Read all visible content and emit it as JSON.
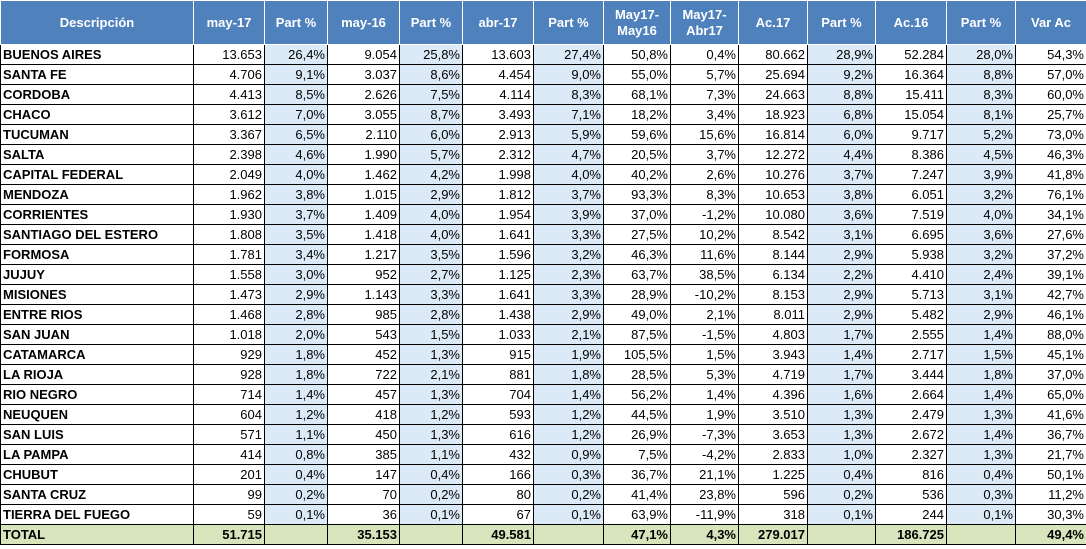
{
  "table": {
    "header": [
      "Descripción",
      "may-17",
      "Part %",
      "may-16",
      "Part %",
      "abr-17",
      "Part %",
      "May17-\nMay16",
      "May17-\nAbr17",
      "Ac.17",
      "Part %",
      "Ac.16",
      "Part %",
      "Var Ac"
    ],
    "rows": [
      [
        "BUENOS AIRES",
        "13.653",
        "26,4%",
        "9.054",
        "25,8%",
        "13.603",
        "27,4%",
        "50,8%",
        "0,4%",
        "80.662",
        "28,9%",
        "52.284",
        "28,0%",
        "54,3%"
      ],
      [
        "SANTA FE",
        "4.706",
        "9,1%",
        "3.037",
        "8,6%",
        "4.454",
        "9,0%",
        "55,0%",
        "5,7%",
        "25.694",
        "9,2%",
        "16.364",
        "8,8%",
        "57,0%"
      ],
      [
        "CORDOBA",
        "4.413",
        "8,5%",
        "2.626",
        "7,5%",
        "4.114",
        "8,3%",
        "68,1%",
        "7,3%",
        "24.663",
        "8,8%",
        "15.411",
        "8,3%",
        "60,0%"
      ],
      [
        "CHACO",
        "3.612",
        "7,0%",
        "3.055",
        "8,7%",
        "3.493",
        "7,1%",
        "18,2%",
        "3,4%",
        "18.923",
        "6,8%",
        "15.054",
        "8,1%",
        "25,7%"
      ],
      [
        "TUCUMAN",
        "3.367",
        "6,5%",
        "2.110",
        "6,0%",
        "2.913",
        "5,9%",
        "59,6%",
        "15,6%",
        "16.814",
        "6,0%",
        "9.717",
        "5,2%",
        "73,0%"
      ],
      [
        "SALTA",
        "2.398",
        "4,6%",
        "1.990",
        "5,7%",
        "2.312",
        "4,7%",
        "20,5%",
        "3,7%",
        "12.272",
        "4,4%",
        "8.386",
        "4,5%",
        "46,3%"
      ],
      [
        "CAPITAL FEDERAL",
        "2.049",
        "4,0%",
        "1.462",
        "4,2%",
        "1.998",
        "4,0%",
        "40,2%",
        "2,6%",
        "10.276",
        "3,7%",
        "7.247",
        "3,9%",
        "41,8%"
      ],
      [
        "MENDOZA",
        "1.962",
        "3,8%",
        "1.015",
        "2,9%",
        "1.812",
        "3,7%",
        "93,3%",
        "8,3%",
        "10.653",
        "3,8%",
        "6.051",
        "3,2%",
        "76,1%"
      ],
      [
        "CORRIENTES",
        "1.930",
        "3,7%",
        "1.409",
        "4,0%",
        "1.954",
        "3,9%",
        "37,0%",
        "-1,2%",
        "10.080",
        "3,6%",
        "7.519",
        "4,0%",
        "34,1%"
      ],
      [
        "SANTIAGO DEL ESTERO",
        "1.808",
        "3,5%",
        "1.418",
        "4,0%",
        "1.641",
        "3,3%",
        "27,5%",
        "10,2%",
        "8.542",
        "3,1%",
        "6.695",
        "3,6%",
        "27,6%"
      ],
      [
        "FORMOSA",
        "1.781",
        "3,4%",
        "1.217",
        "3,5%",
        "1.596",
        "3,2%",
        "46,3%",
        "11,6%",
        "8.144",
        "2,9%",
        "5.938",
        "3,2%",
        "37,2%"
      ],
      [
        "JUJUY",
        "1.558",
        "3,0%",
        "952",
        "2,7%",
        "1.125",
        "2,3%",
        "63,7%",
        "38,5%",
        "6.134",
        "2,2%",
        "4.410",
        "2,4%",
        "39,1%"
      ],
      [
        "MISIONES",
        "1.473",
        "2,9%",
        "1.143",
        "3,3%",
        "1.641",
        "3,3%",
        "28,9%",
        "-10,2%",
        "8.153",
        "2,9%",
        "5.713",
        "3,1%",
        "42,7%"
      ],
      [
        "ENTRE RIOS",
        "1.468",
        "2,8%",
        "985",
        "2,8%",
        "1.438",
        "2,9%",
        "49,0%",
        "2,1%",
        "8.011",
        "2,9%",
        "5.482",
        "2,9%",
        "46,1%"
      ],
      [
        "SAN JUAN",
        "1.018",
        "2,0%",
        "543",
        "1,5%",
        "1.033",
        "2,1%",
        "87,5%",
        "-1,5%",
        "4.803",
        "1,7%",
        "2.555",
        "1,4%",
        "88,0%"
      ],
      [
        "CATAMARCA",
        "929",
        "1,8%",
        "452",
        "1,3%",
        "915",
        "1,9%",
        "105,5%",
        "1,5%",
        "3.943",
        "1,4%",
        "2.717",
        "1,5%",
        "45,1%"
      ],
      [
        "LA RIOJA",
        "928",
        "1,8%",
        "722",
        "2,1%",
        "881",
        "1,8%",
        "28,5%",
        "5,3%",
        "4.719",
        "1,7%",
        "3.444",
        "1,8%",
        "37,0%"
      ],
      [
        "RIO NEGRO",
        "714",
        "1,4%",
        "457",
        "1,3%",
        "704",
        "1,4%",
        "56,2%",
        "1,4%",
        "4.396",
        "1,6%",
        "2.664",
        "1,4%",
        "65,0%"
      ],
      [
        "NEUQUEN",
        "604",
        "1,2%",
        "418",
        "1,2%",
        "593",
        "1,2%",
        "44,5%",
        "1,9%",
        "3.510",
        "1,3%",
        "2.479",
        "1,3%",
        "41,6%"
      ],
      [
        "SAN LUIS",
        "571",
        "1,1%",
        "450",
        "1,3%",
        "616",
        "1,2%",
        "26,9%",
        "-7,3%",
        "3.653",
        "1,3%",
        "2.672",
        "1,4%",
        "36,7%"
      ],
      [
        "LA PAMPA",
        "414",
        "0,8%",
        "385",
        "1,1%",
        "432",
        "0,9%",
        "7,5%",
        "-4,2%",
        "2.833",
        "1,0%",
        "2.327",
        "1,3%",
        "21,7%"
      ],
      [
        "CHUBUT",
        "201",
        "0,4%",
        "147",
        "0,4%",
        "166",
        "0,3%",
        "36,7%",
        "21,1%",
        "1.225",
        "0,4%",
        "816",
        "0,4%",
        "50,1%"
      ],
      [
        "SANTA CRUZ",
        "99",
        "0,2%",
        "70",
        "0,2%",
        "80",
        "0,2%",
        "41,4%",
        "23,8%",
        "596",
        "0,2%",
        "536",
        "0,3%",
        "11,2%"
      ],
      [
        "TIERRA DEL FUEGO",
        "59",
        "0,1%",
        "36",
        "0,1%",
        "67",
        "0,1%",
        "63,9%",
        "-11,9%",
        "318",
        "0,1%",
        "244",
        "0,1%",
        "30,3%"
      ]
    ],
    "total": [
      "TOTAL",
      "51.715",
      "35.153",
      "49.581",
      "47,1%",
      "4,3%",
      "279.017",
      "186.725",
      "49,4%"
    ]
  }
}
